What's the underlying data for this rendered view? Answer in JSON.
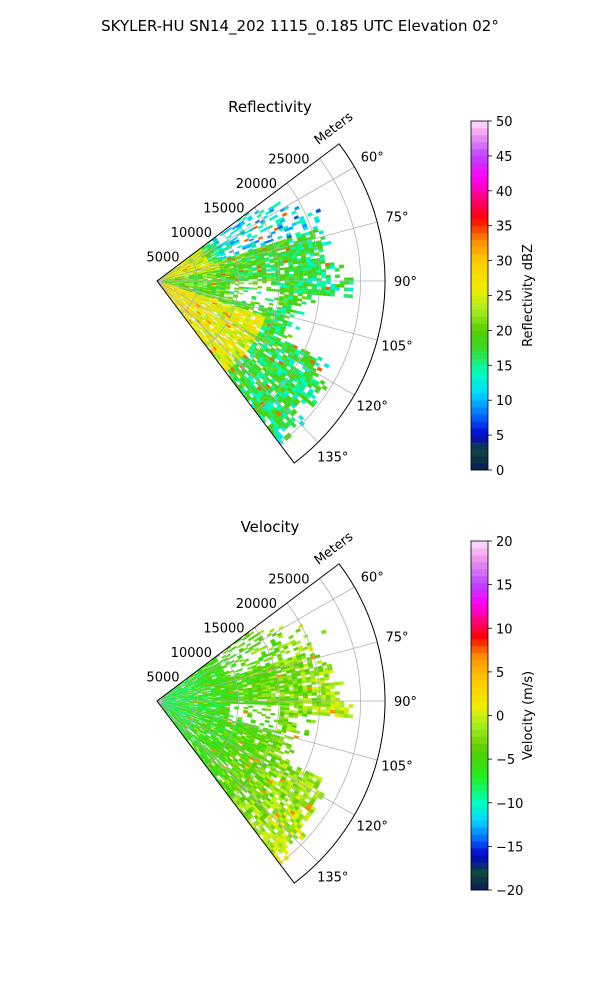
{
  "figure_title": "SKYLER-HU  SN14_202  1115_0.185 UTC Elevation 02°",
  "chart_data": [
    {
      "type": "heatmap",
      "title": "Reflectivity",
      "range_label": "Meters",
      "range_ticks": [
        "5000",
        "10000",
        "15000",
        "20000",
        "25000"
      ],
      "range_tick_values": [
        5000,
        10000,
        15000,
        20000,
        25000
      ],
      "azimuth_ticks": [
        "60°",
        "75°",
        "90°",
        "105°",
        "120°",
        "135°"
      ],
      "azimuth_tick_values": [
        60,
        75,
        90,
        105,
        120,
        135
      ],
      "azimuth_range": [
        53,
        143
      ],
      "range_max": 28000,
      "grid": true,
      "colorbar": {
        "label": "Reflectivity dBZ",
        "range": [
          0,
          50
        ],
        "ticks": [
          "0",
          "5",
          "10",
          "15",
          "20",
          "25",
          "30",
          "35",
          "40",
          "45",
          "50"
        ],
        "tick_values": [
          0,
          5,
          10,
          15,
          20,
          25,
          30,
          35,
          40,
          45,
          50
        ],
        "stops": [
          {
            "v": 0,
            "c": "#0b1a5a"
          },
          {
            "v": 3,
            "c": "#0c4a3a"
          },
          {
            "v": 5,
            "c": "#0000cc"
          },
          {
            "v": 8,
            "c": "#0070ff"
          },
          {
            "v": 11,
            "c": "#00d8ff"
          },
          {
            "v": 14,
            "c": "#00ffc0"
          },
          {
            "v": 17,
            "c": "#33dd33"
          },
          {
            "v": 20,
            "c": "#55cc00"
          },
          {
            "v": 23,
            "c": "#aaee22"
          },
          {
            "v": 26,
            "c": "#eeee00"
          },
          {
            "v": 30,
            "c": "#ffcc00"
          },
          {
            "v": 33,
            "c": "#ff8800"
          },
          {
            "v": 36,
            "c": "#ff0000"
          },
          {
            "v": 39,
            "c": "#ff0080"
          },
          {
            "v": 42,
            "c": "#ff00ff"
          },
          {
            "v": 45,
            "c": "#bb44ff"
          },
          {
            "v": 48,
            "c": "#ee99ee"
          },
          {
            "v": 50,
            "c": "#ffe0ff"
          }
        ]
      }
    },
    {
      "type": "heatmap",
      "title": "Velocity",
      "range_label": "Meters",
      "range_ticks": [
        "5000",
        "10000",
        "15000",
        "20000",
        "25000"
      ],
      "range_tick_values": [
        5000,
        10000,
        15000,
        20000,
        25000
      ],
      "azimuth_ticks": [
        "60°",
        "75°",
        "90°",
        "105°",
        "120°",
        "135°"
      ],
      "azimuth_tick_values": [
        60,
        75,
        90,
        105,
        120,
        135
      ],
      "azimuth_range": [
        53,
        143
      ],
      "range_max": 28000,
      "grid": true,
      "colorbar": {
        "label": "Velocity (m/s)",
        "range": [
          -20,
          20
        ],
        "ticks": [
          "−20",
          "−15",
          "−10",
          "−5",
          "0",
          "5",
          "10",
          "15",
          "20"
        ],
        "tick_values": [
          -20,
          -15,
          -10,
          -5,
          0,
          5,
          10,
          15,
          20
        ],
        "stops": [
          {
            "v": -20,
            "c": "#0b1a5a"
          },
          {
            "v": -18,
            "c": "#0c4a3a"
          },
          {
            "v": -16,
            "c": "#0000cc"
          },
          {
            "v": -14,
            "c": "#0070ff"
          },
          {
            "v": -12,
            "c": "#00d8ff"
          },
          {
            "v": -10,
            "c": "#00ffc0"
          },
          {
            "v": -7,
            "c": "#22ee22"
          },
          {
            "v": -4,
            "c": "#55cc00"
          },
          {
            "v": -1,
            "c": "#aaee22"
          },
          {
            "v": 1,
            "c": "#eeee00"
          },
          {
            "v": 4,
            "c": "#ffcc00"
          },
          {
            "v": 7,
            "c": "#ff8800"
          },
          {
            "v": 9,
            "c": "#ff0000"
          },
          {
            "v": 11,
            "c": "#ff0080"
          },
          {
            "v": 13,
            "c": "#ff00ff"
          },
          {
            "v": 15,
            "c": "#bb44ff"
          },
          {
            "v": 18,
            "c": "#ee99ee"
          },
          {
            "v": 20,
            "c": "#ffe0ff"
          }
        ]
      }
    }
  ]
}
